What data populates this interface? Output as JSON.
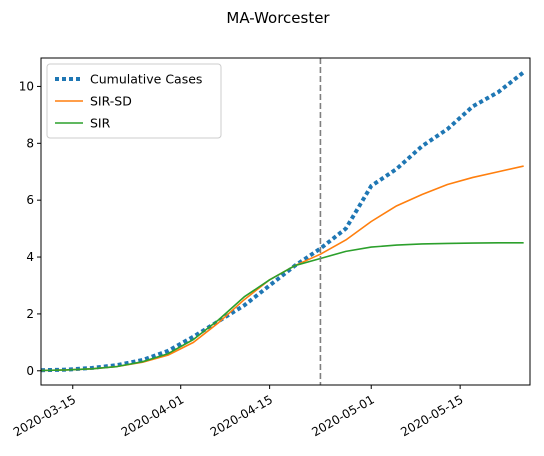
{
  "chart_data": {
    "type": "line",
    "title": "MA-Worcester",
    "xlabel": "",
    "ylabel": "",
    "x_axis": {
      "type": "date",
      "range": [
        "2020-03-10",
        "2020-05-26"
      ],
      "ticks": [
        "2020-03-15",
        "2020-04-01",
        "2020-04-15",
        "2020-05-01",
        "2020-05-15"
      ]
    },
    "y_axis": {
      "range": [
        -0.5,
        11
      ],
      "ticks": [
        0,
        2,
        4,
        6,
        8,
        10
      ]
    },
    "grid": false,
    "legend_position": "top-left",
    "reference_line": {
      "x": "2020-04-23",
      "style": "dashed",
      "color": "#7f7f7f"
    },
    "series": [
      {
        "name": "Cumulative Cases",
        "style": "dotted",
        "color": "#1f77b4",
        "x": [
          "2020-03-10",
          "2020-03-14",
          "2020-03-18",
          "2020-03-22",
          "2020-03-26",
          "2020-03-30",
          "2020-04-03",
          "2020-04-07",
          "2020-04-11",
          "2020-04-15",
          "2020-04-19",
          "2020-04-23",
          "2020-04-27",
          "2020-05-01",
          "2020-05-05",
          "2020-05-09",
          "2020-05-13",
          "2020-05-17",
          "2020-05-21",
          "2020-05-25"
        ],
        "values": [
          0.02,
          0.04,
          0.1,
          0.2,
          0.38,
          0.7,
          1.2,
          1.75,
          2.3,
          3.0,
          3.7,
          4.3,
          5.0,
          6.5,
          7.1,
          7.9,
          8.5,
          9.3,
          9.8,
          10.5
        ]
      },
      {
        "name": "SIR-SD",
        "style": "solid",
        "color": "#ff7f0e",
        "x": [
          "2020-03-10",
          "2020-03-14",
          "2020-03-18",
          "2020-03-22",
          "2020-03-26",
          "2020-03-30",
          "2020-04-03",
          "2020-04-07",
          "2020-04-11",
          "2020-04-15",
          "2020-04-19",
          "2020-04-23",
          "2020-04-27",
          "2020-05-01",
          "2020-05-05",
          "2020-05-09",
          "2020-05-13",
          "2020-05-17",
          "2020-05-21",
          "2020-05-25"
        ],
        "values": [
          0.01,
          0.03,
          0.07,
          0.15,
          0.3,
          0.55,
          1.0,
          1.7,
          2.5,
          3.2,
          3.7,
          4.1,
          4.6,
          5.25,
          5.8,
          6.2,
          6.55,
          6.8,
          7.0,
          7.2
        ]
      },
      {
        "name": "SIR",
        "style": "solid",
        "color": "#2ca02c",
        "x": [
          "2020-03-10",
          "2020-03-14",
          "2020-03-18",
          "2020-03-22",
          "2020-03-26",
          "2020-03-30",
          "2020-04-03",
          "2020-04-07",
          "2020-04-11",
          "2020-04-15",
          "2020-04-19",
          "2020-04-23",
          "2020-04-27",
          "2020-05-01",
          "2020-05-05",
          "2020-05-09",
          "2020-05-13",
          "2020-05-17",
          "2020-05-21",
          "2020-05-25"
        ],
        "values": [
          0.01,
          0.03,
          0.07,
          0.15,
          0.32,
          0.6,
          1.1,
          1.8,
          2.6,
          3.2,
          3.7,
          3.95,
          4.2,
          4.35,
          4.42,
          4.46,
          4.48,
          4.49,
          4.5,
          4.5
        ]
      }
    ]
  }
}
